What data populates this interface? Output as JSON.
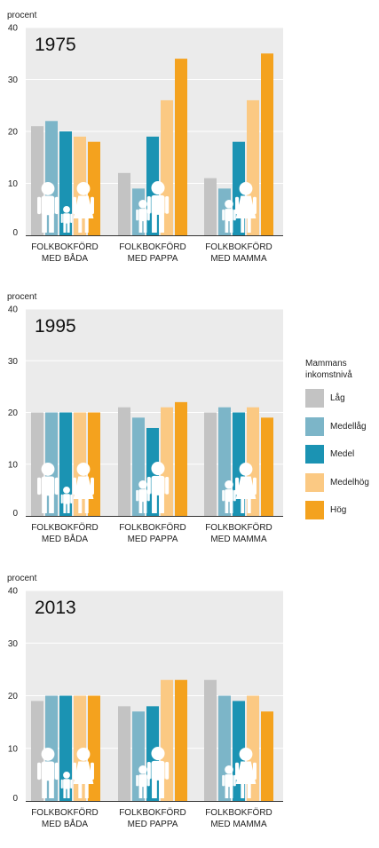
{
  "legend": {
    "title_line1": "Mammans",
    "title_line2": "inkomstnivå",
    "items": [
      {
        "label": "Låg",
        "color": "#c3c3c3"
      },
      {
        "label": "Medellåg",
        "color": "#7cb5c8"
      },
      {
        "label": "Medel",
        "color": "#1b93b3"
      },
      {
        "label": "Medelhög",
        "color": "#fbc983"
      },
      {
        "label": "Hög",
        "color": "#f4a21e"
      }
    ]
  },
  "icons": [
    "family-icon",
    "father-child-icon",
    "mother-child-icon"
  ],
  "chart_data": [
    {
      "type": "bar",
      "title": "1975",
      "ylabel": "procent",
      "ylim": [
        0,
        40
      ],
      "yticks": [
        0,
        10,
        20,
        30,
        40
      ],
      "categories": [
        [
          "FOLKBOKFÖRD",
          "MED BÅDA"
        ],
        [
          "FOLKBOKFÖRD",
          "MED PAPPA"
        ],
        [
          "FOLKBOKFÖRD",
          "MED MAMMA"
        ]
      ],
      "series": [
        {
          "name": "Låg",
          "values": [
            21,
            12,
            11
          ]
        },
        {
          "name": "Medellåg",
          "values": [
            22,
            9,
            9
          ]
        },
        {
          "name": "Medel",
          "values": [
            20,
            19,
            18
          ]
        },
        {
          "name": "Medelhög",
          "values": [
            19,
            26,
            26
          ]
        },
        {
          "name": "Hög",
          "values": [
            18,
            34,
            35
          ]
        }
      ],
      "grid": true,
      "legend": "right"
    },
    {
      "type": "bar",
      "title": "1995",
      "ylabel": "procent",
      "ylim": [
        0,
        40
      ],
      "yticks": [
        0,
        10,
        20,
        30,
        40
      ],
      "categories": [
        [
          "FOLKBOKFÖRD",
          "MED BÅDA"
        ],
        [
          "FOLKBOKFÖRD",
          "MED PAPPA"
        ],
        [
          "FOLKBOKFÖRD",
          "MED MAMMA"
        ]
      ],
      "series": [
        {
          "name": "Låg",
          "values": [
            20,
            21,
            20
          ]
        },
        {
          "name": "Medellåg",
          "values": [
            20,
            19,
            21
          ]
        },
        {
          "name": "Medel",
          "values": [
            20,
            17,
            20
          ]
        },
        {
          "name": "Medelhög",
          "values": [
            20,
            21,
            21
          ]
        },
        {
          "name": "Hög",
          "values": [
            20,
            22,
            19
          ]
        }
      ],
      "grid": true,
      "legend": "right"
    },
    {
      "type": "bar",
      "title": "2013",
      "ylabel": "procent",
      "ylim": [
        0,
        40
      ],
      "yticks": [
        0,
        10,
        20,
        30,
        40
      ],
      "categories": [
        [
          "FOLKBOKFÖRD",
          "MED BÅDA"
        ],
        [
          "FOLKBOKFÖRD",
          "MED PAPPA"
        ],
        [
          "FOLKBOKFÖRD",
          "MED MAMMA"
        ]
      ],
      "series": [
        {
          "name": "Låg",
          "values": [
            19,
            18,
            23
          ]
        },
        {
          "name": "Medellåg",
          "values": [
            20,
            17,
            20
          ]
        },
        {
          "name": "Medel",
          "values": [
            20,
            18,
            19
          ]
        },
        {
          "name": "Medelhög",
          "values": [
            20,
            23,
            20
          ]
        },
        {
          "name": "Hög",
          "values": [
            20,
            23,
            17
          ]
        }
      ],
      "grid": true,
      "legend": "right"
    }
  ]
}
